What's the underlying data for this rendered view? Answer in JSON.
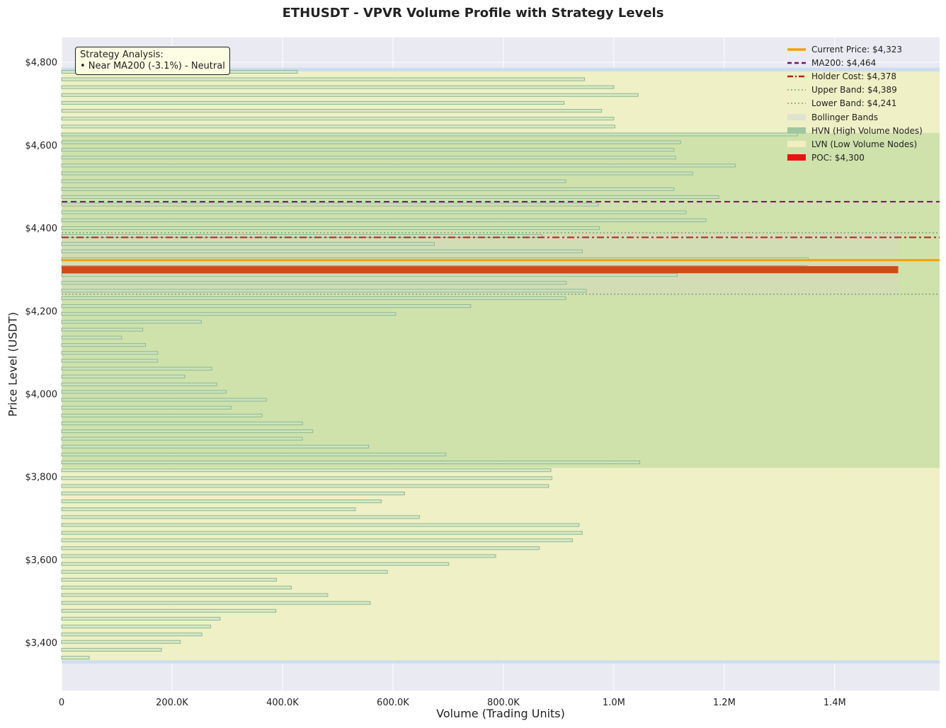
{
  "chart_data": {
    "type": "bar",
    "orientation": "horizontal",
    "title": "ETHUSDT - VPVR Volume Profile with Strategy Levels",
    "xlabel": "Volume (Trading Units)",
    "ylabel": "Price Level (USDT)",
    "xlim": [
      0,
      1590000
    ],
    "ylim": [
      3285,
      4860
    ],
    "x_ticks": [
      {
        "value": 0,
        "label": "0"
      },
      {
        "value": 200000,
        "label": "200.0K"
      },
      {
        "value": 400000,
        "label": "400.0K"
      },
      {
        "value": 600000,
        "label": "600.0K"
      },
      {
        "value": 800000,
        "label": "800.0K"
      },
      {
        "value": 1000000,
        "label": "1.0M"
      },
      {
        "value": 1200000,
        "label": "1.2M"
      },
      {
        "value": 1400000,
        "label": "1.4M"
      }
    ],
    "y_ticks": [
      {
        "value": 3400,
        "label": "$3,400"
      },
      {
        "value": 3600,
        "label": "$3,600"
      },
      {
        "value": 3800,
        "label": "$3,800"
      },
      {
        "value": 4000,
        "label": "$4,000"
      },
      {
        "value": 4200,
        "label": "$4,200"
      },
      {
        "value": 4400,
        "label": "$4,400"
      },
      {
        "value": 4600,
        "label": "$4,600"
      },
      {
        "value": 4800,
        "label": "$4,800"
      }
    ],
    "grid": true,
    "legend_position": "top-right",
    "price_bins": [
      {
        "price": 3355,
        "volume": 50000
      },
      {
        "price": 3374,
        "volume": 181000
      },
      {
        "price": 3393,
        "volume": 215000
      },
      {
        "price": 3411,
        "volume": 254000
      },
      {
        "price": 3430,
        "volume": 270000
      },
      {
        "price": 3449,
        "volume": 287000
      },
      {
        "price": 3468,
        "volume": 388000
      },
      {
        "price": 3487,
        "volume": 559000
      },
      {
        "price": 3506,
        "volume": 482000
      },
      {
        "price": 3524,
        "volume": 416000
      },
      {
        "price": 3543,
        "volume": 389000
      },
      {
        "price": 3562,
        "volume": 590000
      },
      {
        "price": 3581,
        "volume": 701000
      },
      {
        "price": 3600,
        "volume": 786000
      },
      {
        "price": 3619,
        "volume": 865000
      },
      {
        "price": 3638,
        "volume": 925000
      },
      {
        "price": 3656,
        "volume": 943000
      },
      {
        "price": 3675,
        "volume": 937000
      },
      {
        "price": 3694,
        "volume": 648000
      },
      {
        "price": 3713,
        "volume": 532000
      },
      {
        "price": 3732,
        "volume": 579000
      },
      {
        "price": 3751,
        "volume": 621000
      },
      {
        "price": 3769,
        "volume": 882000
      },
      {
        "price": 3788,
        "volume": 888000
      },
      {
        "price": 3807,
        "volume": 886000
      },
      {
        "price": 3826,
        "volume": 1047000
      },
      {
        "price": 3845,
        "volume": 696000
      },
      {
        "price": 3864,
        "volume": 556000
      },
      {
        "price": 3883,
        "volume": 436000
      },
      {
        "price": 3901,
        "volume": 455000
      },
      {
        "price": 3920,
        "volume": 436000
      },
      {
        "price": 3939,
        "volume": 363000
      },
      {
        "price": 3958,
        "volume": 307000
      },
      {
        "price": 3977,
        "volume": 371000
      },
      {
        "price": 3996,
        "volume": 298000
      },
      {
        "price": 4014,
        "volume": 281000
      },
      {
        "price": 4033,
        "volume": 223000
      },
      {
        "price": 4052,
        "volume": 272000
      },
      {
        "price": 4071,
        "volume": 174000
      },
      {
        "price": 4090,
        "volume": 174000
      },
      {
        "price": 4109,
        "volume": 152000
      },
      {
        "price": 4127,
        "volume": 109000
      },
      {
        "price": 4146,
        "volume": 147000
      },
      {
        "price": 4165,
        "volume": 253000
      },
      {
        "price": 4184,
        "volume": 605000
      },
      {
        "price": 4203,
        "volume": 741000
      },
      {
        "price": 4222,
        "volume": 913000
      },
      {
        "price": 4240,
        "volume": 950000
      },
      {
        "price": 4259,
        "volume": 914000
      },
      {
        "price": 4278,
        "volume": 1115000
      },
      {
        "price": 4297,
        "volume": 1350000
      },
      {
        "price": 4316,
        "volume": 1352000
      },
      {
        "price": 4335,
        "volume": 943000
      },
      {
        "price": 4353,
        "volume": 675000
      },
      {
        "price": 4372,
        "volume": 870000
      },
      {
        "price": 4391,
        "volume": 974000
      },
      {
        "price": 4410,
        "volume": 1167000
      },
      {
        "price": 4429,
        "volume": 1131000
      },
      {
        "price": 4448,
        "volume": 972000
      },
      {
        "price": 4466,
        "volume": 1190000
      },
      {
        "price": 4485,
        "volume": 1109000
      },
      {
        "price": 4504,
        "volume": 913000
      },
      {
        "price": 4523,
        "volume": 1143000
      },
      {
        "price": 4542,
        "volume": 1220000
      },
      {
        "price": 4561,
        "volume": 1112000
      },
      {
        "price": 4580,
        "volume": 1109000
      },
      {
        "price": 4598,
        "volume": 1121000
      },
      {
        "price": 4617,
        "volume": 1333000
      },
      {
        "price": 4636,
        "volume": 1002000
      },
      {
        "price": 4655,
        "volume": 1000000
      },
      {
        "price": 4674,
        "volume": 978000
      },
      {
        "price": 4693,
        "volume": 910000
      },
      {
        "price": 4712,
        "volume": 1044000
      },
      {
        "price": 4731,
        "volume": 1000000
      },
      {
        "price": 4750,
        "volume": 947000
      },
      {
        "price": 4768,
        "volume": 427000
      }
    ],
    "bin_height": 17,
    "poc": {
      "price": 4300,
      "volume": 1515000,
      "label": "POC: $4,300",
      "color": "#cc1100"
    },
    "hvn_zone": {
      "from": 3822,
      "to": 4630,
      "label": "HVN (High Volume Nodes)"
    },
    "lvn_zone": {
      "from": 3358,
      "to": 4778,
      "label": "LVN (Low Volume Nodes)"
    },
    "outer_band": {
      "from": 3350,
      "to": 4787
    },
    "bollinger": {
      "upper": 4389,
      "lower": 4241,
      "xmax": 1515000,
      "label": "Bollinger Bands"
    },
    "lines": [
      {
        "key": "current",
        "value": 4323,
        "label": "Current Price: $4,323",
        "color": "#f5a000",
        "style": "solid",
        "width": 3
      },
      {
        "key": "ma200",
        "value": 4464,
        "label": "MA200: $4,464",
        "color": "#7a0b7a",
        "style": "dashed",
        "width": 2
      },
      {
        "key": "holder",
        "value": 4378,
        "label": "Holder Cost: $4,378",
        "color": "#b22222",
        "style": "dashdot",
        "width": 2
      },
      {
        "key": "upper",
        "value": 4389,
        "label": "Upper Band: $4,389",
        "color": "#7f9f7f",
        "style": "dotted",
        "width": 1.5
      },
      {
        "key": "lower",
        "value": 4241,
        "label": "Lower Band: $4,241",
        "color": "#7f9f7f",
        "style": "dotted",
        "width": 1.5
      }
    ],
    "annotation": {
      "line1": "Strategy Analysis:",
      "line2": "• Near MA200 (-3.1%) - Neutral"
    },
    "colors": {
      "plot_bg": "#eaeaf2",
      "bar_fill": "#c6e3c6",
      "bar_edge": "#8fb88f",
      "hvn_fill": "#a9d08e",
      "lvn_fill": "#f3f2c0",
      "outer_band": "#c6d9f0",
      "bollinger_fill": "#d8d8c0"
    }
  },
  "legend": [
    {
      "key": "current",
      "label": "Current Price: $4,323",
      "kind": "line",
      "color": "#f5a000",
      "style": "solid"
    },
    {
      "key": "ma200",
      "label": "MA200: $4,464",
      "kind": "line",
      "color": "#7a0b7a",
      "style": "dashed"
    },
    {
      "key": "holder",
      "label": "Holder Cost: $4,378",
      "kind": "line",
      "color": "#b22222",
      "style": "dashdot"
    },
    {
      "key": "upper",
      "label": "Upper Band: $4,389",
      "kind": "line",
      "color": "#7f9f7f",
      "style": "dotted"
    },
    {
      "key": "lower",
      "label": "Lower Band: $4,241",
      "kind": "line",
      "color": "#7f9f7f",
      "style": "dotted"
    },
    {
      "key": "bollinger",
      "label": "Bollinger Bands",
      "kind": "patch",
      "color": "#dfe3cf"
    },
    {
      "key": "hvn",
      "label": "HVN (High Volume Nodes)",
      "kind": "patch",
      "color": "#9fc79f"
    },
    {
      "key": "lvn",
      "label": "LVN (Low Volume Nodes)",
      "kind": "patch",
      "color": "#f1eec0"
    },
    {
      "key": "poc",
      "label": "POC: $4,300",
      "kind": "patch",
      "color": "#ee1111"
    }
  ]
}
